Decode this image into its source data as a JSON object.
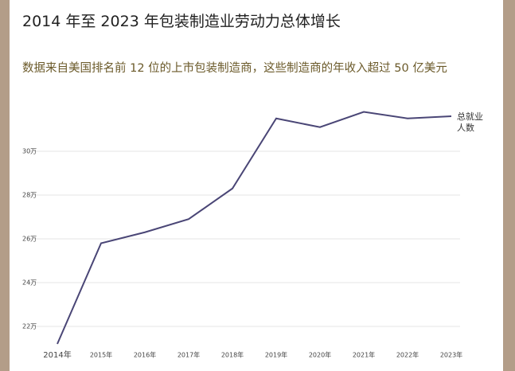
{
  "chart_data": {
    "type": "line",
    "title": "2014 年至 2023 年包装制造业劳动力总体增长",
    "subtitle": "数据来自美国排名前 12 位的上市包装制造商，这些制造商的年收入超过 50 亿美元",
    "categories": [
      "2014年",
      "2015年",
      "2016年",
      "2017年",
      "2018年",
      "2019年",
      "2020年",
      "2021年",
      "2022年",
      "2023年"
    ],
    "series": [
      {
        "name": "总就业人数",
        "color": "#4a4676",
        "values": [
          212000,
          258000,
          263000,
          269000,
          283000,
          315000,
          311000,
          318000,
          315000,
          316000
        ]
      }
    ],
    "ylim": [
      210000,
      320000
    ],
    "yticks": [
      {
        "value": 220000,
        "label": "22万"
      },
      {
        "value": 240000,
        "label": "24万"
      },
      {
        "value": 260000,
        "label": "26万"
      },
      {
        "value": 280000,
        "label": "28万"
      },
      {
        "value": 300000,
        "label": "30万"
      }
    ],
    "grid": true
  }
}
